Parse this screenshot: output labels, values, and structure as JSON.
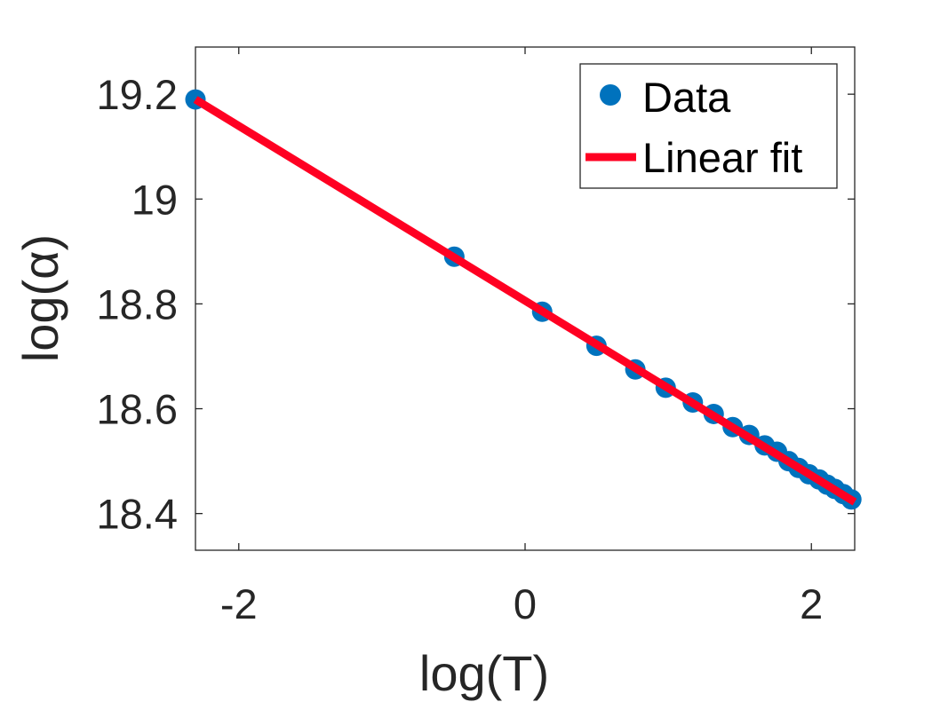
{
  "chart_data": {
    "type": "scatter",
    "title": "",
    "xlabel": "log(T)",
    "ylabel": "log(α)",
    "xlim": [
      -2.3026,
      2.3026
    ],
    "ylim": [
      18.33,
      19.29
    ],
    "xticks": [
      -2,
      0,
      2
    ],
    "xtick_labels": [
      "-2",
      "0",
      "2"
    ],
    "yticks": [
      18.4,
      18.6,
      18.8,
      19.0,
      19.2
    ],
    "ytick_labels": [
      "18.4",
      "18.6",
      "18.8",
      "19",
      "19.2"
    ],
    "grid": false,
    "legend_position": "top-right",
    "series": [
      {
        "name": "Data",
        "kind": "scatter",
        "color": "#0072BD",
        "x": [
          -2.3026,
          -0.4943,
          0.1195,
          0.4987,
          0.7702,
          0.9824,
          1.1716,
          1.3176,
          1.4506,
          1.5654,
          1.674,
          1.7599,
          1.8405,
          1.911,
          1.9824,
          2.0541,
          2.1103,
          2.1635,
          2.2238,
          2.279
        ],
        "y": [
          19.19,
          18.89,
          18.785,
          18.72,
          18.675,
          18.64,
          18.612,
          18.59,
          18.565,
          18.55,
          18.53,
          18.518,
          18.5,
          18.487,
          18.475,
          18.465,
          18.455,
          18.447,
          18.437,
          18.427
        ]
      },
      {
        "name": "Linear fit",
        "kind": "line",
        "color": "#FF0022",
        "x": [
          -2.3026,
          2.3026
        ],
        "y": [
          19.19,
          18.422
        ]
      }
    ]
  }
}
